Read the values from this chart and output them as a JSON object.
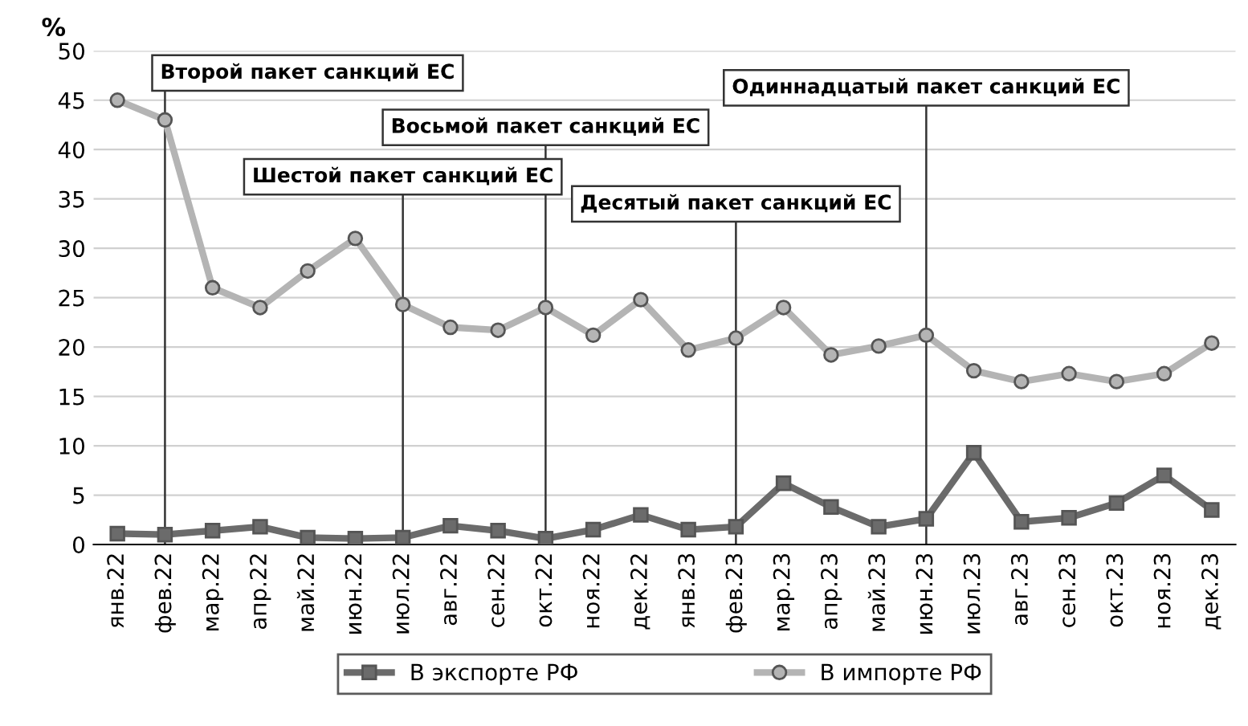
{
  "chart_data": {
    "type": "line",
    "ylabel": "%",
    "categories": [
      "янв.22",
      "фев.22",
      "мар.22",
      "апр.22",
      "май.22",
      "июн.22",
      "июл.22",
      "авг.22",
      "сен.22",
      "окт.22",
      "ноя.22",
      "дек.22",
      "янв.23",
      "фев.23",
      "мар.23",
      "апр.23",
      "май.23",
      "июн.23",
      "июл.23",
      "авг.23",
      "сен.23",
      "окт.23",
      "ноя.23",
      "дек.23"
    ],
    "series": [
      {
        "name": "В экспорте РФ",
        "color": "#6b6b6b",
        "marker": "square",
        "values": [
          1.1,
          1.0,
          1.4,
          1.8,
          0.7,
          0.6,
          0.7,
          1.9,
          1.4,
          0.6,
          1.5,
          3.0,
          1.5,
          1.8,
          6.2,
          3.8,
          1.8,
          2.6,
          9.3,
          2.3,
          2.7,
          4.2,
          7.0,
          3.5
        ]
      },
      {
        "name": "В импорте РФ",
        "color": "#b4b4b4",
        "marker": "circle",
        "values": [
          45,
          43,
          26,
          24,
          27.7,
          31,
          24.3,
          22,
          21.7,
          24,
          21.2,
          24.8,
          19.7,
          20.9,
          24,
          19.2,
          20.1,
          21.2,
          17.6,
          16.5,
          17.3,
          16.5,
          17.3,
          20.4
        ]
      }
    ],
    "ylim": [
      0,
      50
    ],
    "yticks": [
      0,
      5,
      10,
      15,
      20,
      25,
      30,
      35,
      40,
      45,
      50
    ],
    "grid": "y",
    "legend": "bottom",
    "ref_lines": [
      {
        "axis": "x",
        "value": "фев.22",
        "label": "Второй пакет санкций ЕС"
      },
      {
        "axis": "x",
        "value": "июл.22",
        "label": "Шестой пакет санкций ЕС"
      },
      {
        "axis": "x",
        "value": "окт.22",
        "label": "Восьмой пакет санкций ЕС"
      },
      {
        "axis": "x",
        "value": "фев.23",
        "label": "Десятый пакет санкций ЕС"
      },
      {
        "axis": "x",
        "value": "июн.23",
        "label": "Одиннадцатый пакет санкций ЕС"
      }
    ]
  }
}
